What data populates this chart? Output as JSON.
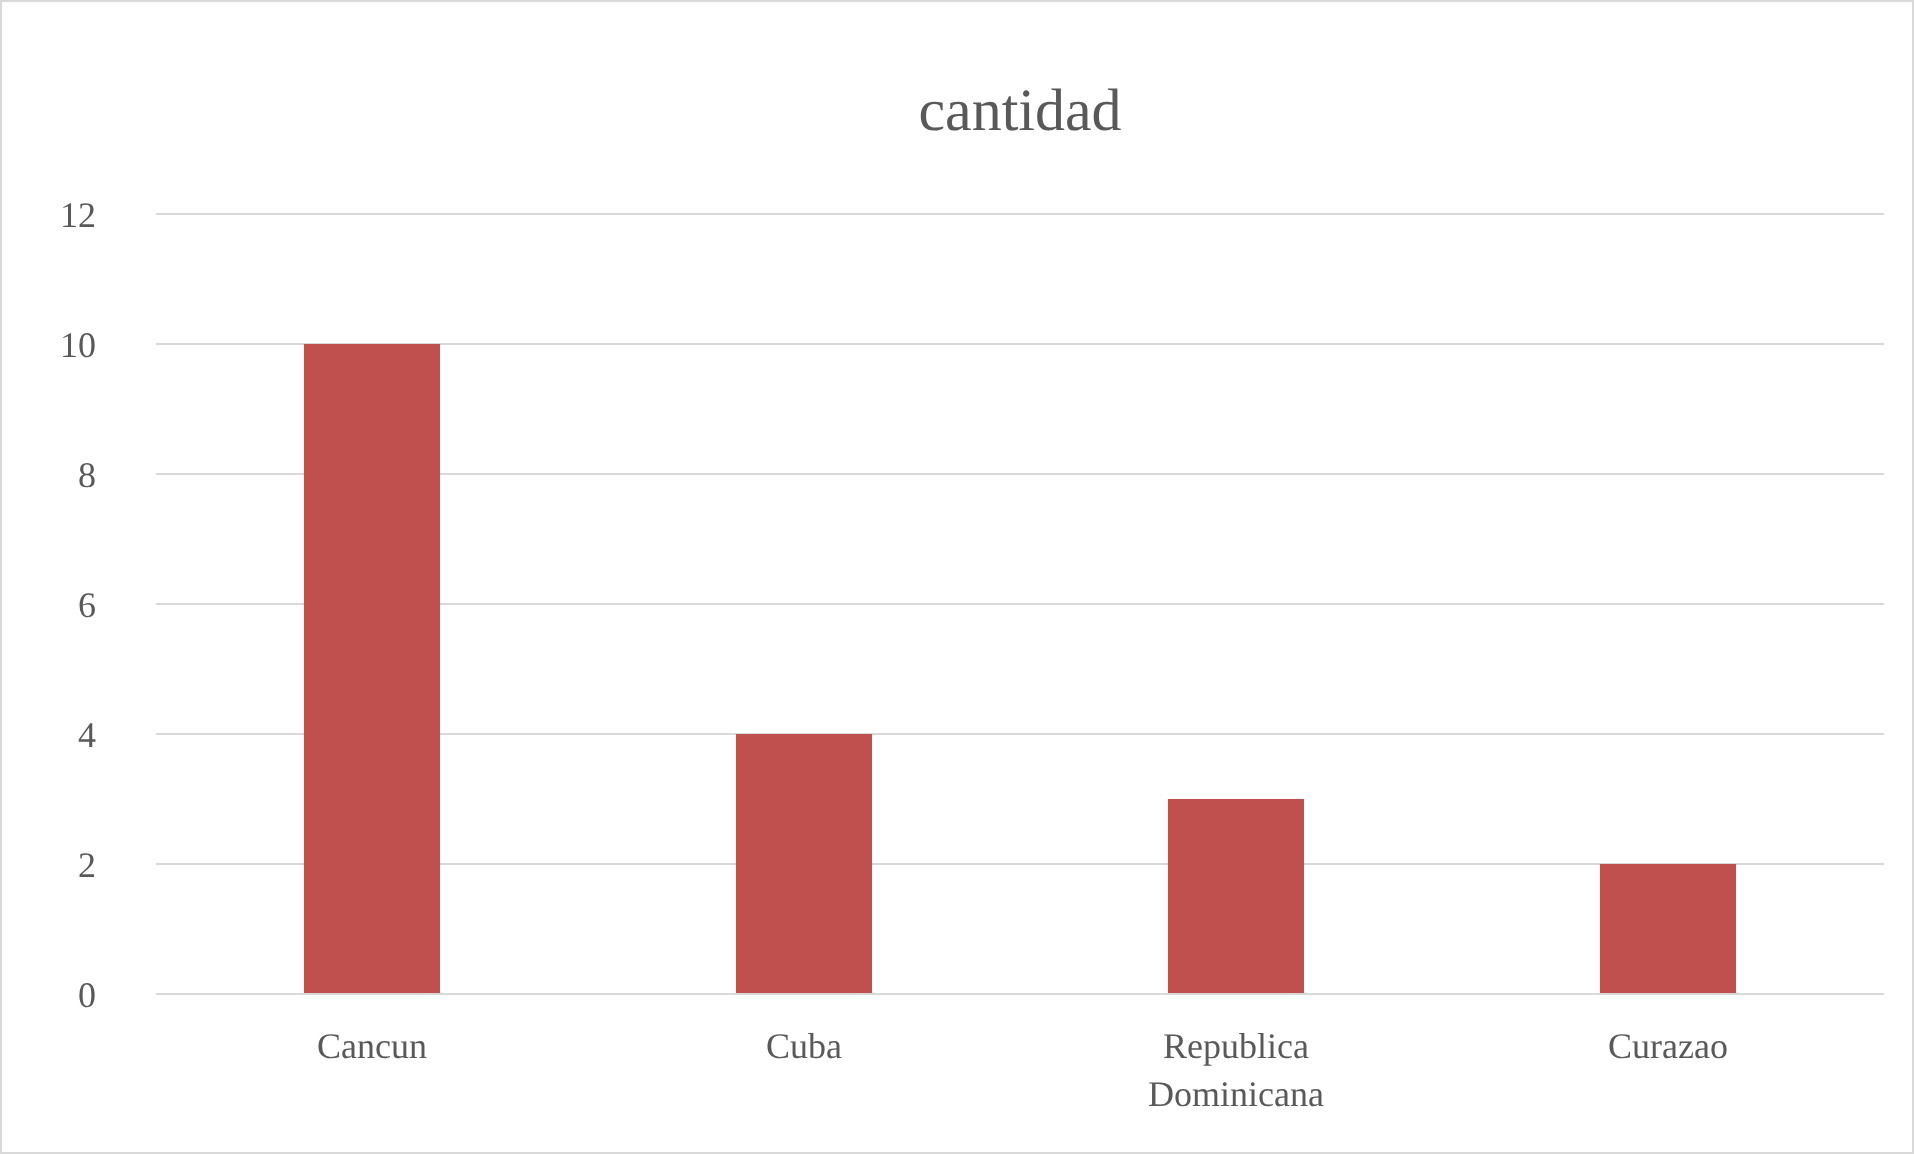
{
  "chart_data": {
    "type": "bar",
    "title": "cantidad",
    "categories": [
      "Cancun",
      "Cuba",
      "Republica Dominicana",
      "Curazao"
    ],
    "values": [
      10,
      4,
      3,
      2
    ],
    "color": "#c0504d",
    "ylim": [
      0,
      12
    ],
    "yticks": [
      0,
      2,
      4,
      6,
      8,
      10,
      12
    ],
    "grid": "y"
  }
}
